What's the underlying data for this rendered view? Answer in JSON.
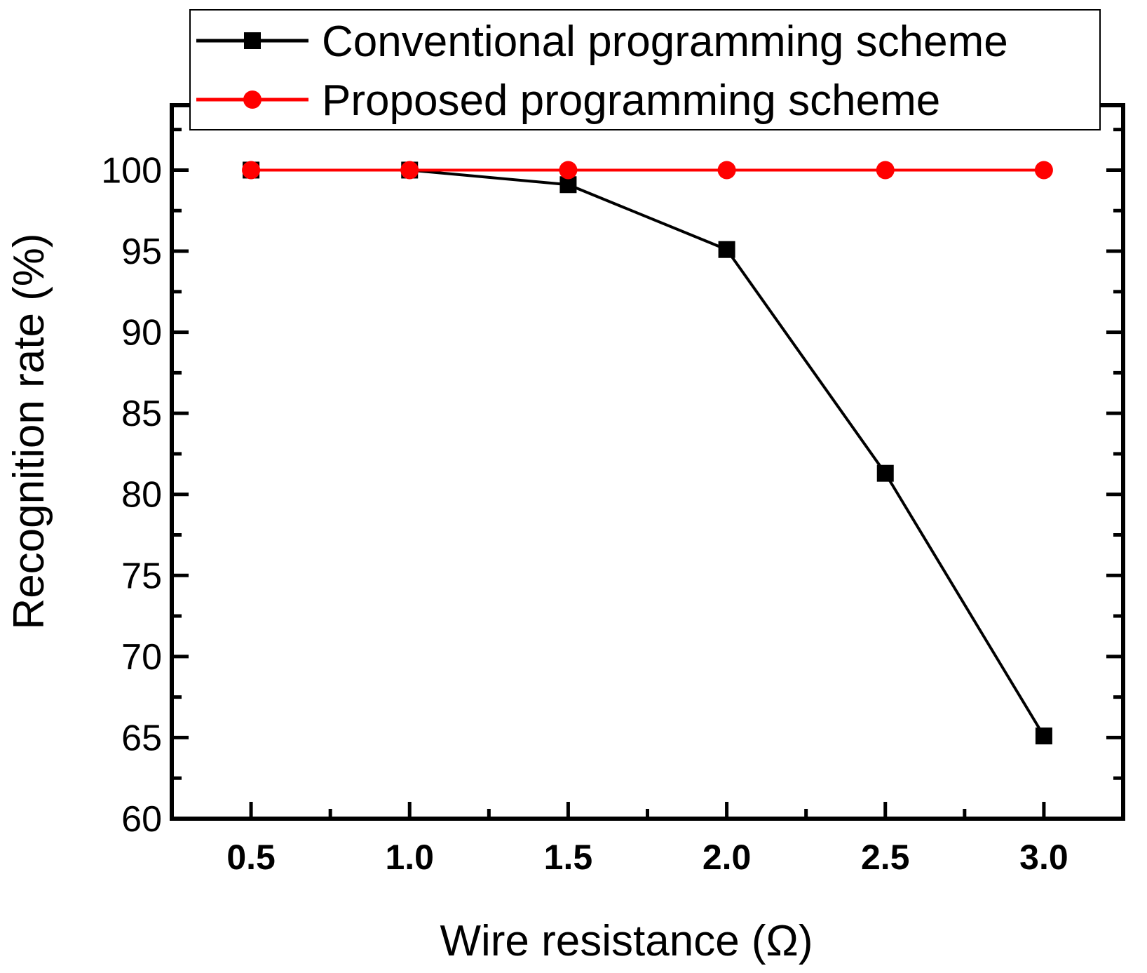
{
  "chart_data": {
    "type": "line",
    "title": "",
    "xlabel": "Wire resistance (Ω)",
    "ylabel": "Recognition rate (%)",
    "x": [
      0.5,
      1.0,
      1.5,
      2.0,
      2.5,
      3.0
    ],
    "x_tick_labels": [
      "0.5",
      "1.0",
      "1.5",
      "2.0",
      "2.5",
      "3.0"
    ],
    "xlim": [
      0.25,
      3.25
    ],
    "ylim": [
      60,
      104
    ],
    "y_ticks": [
      60,
      65,
      70,
      75,
      80,
      85,
      90,
      95,
      100
    ],
    "y_tick_labels": [
      "60",
      "65",
      "70",
      "75",
      "80",
      "85",
      "90",
      "95",
      "100"
    ],
    "grid": false,
    "legend_position": "top",
    "series": [
      {
        "name": "Conventional programming scheme",
        "color": "#000000",
        "marker": "square",
        "values": [
          100.0,
          100.0,
          99.1,
          95.1,
          81.3,
          65.1
        ]
      },
      {
        "name": "Proposed programming scheme",
        "color": "#ff0000",
        "marker": "circle",
        "values": [
          100.0,
          100.0,
          100.0,
          100.0,
          100.0,
          100.0
        ]
      }
    ]
  }
}
